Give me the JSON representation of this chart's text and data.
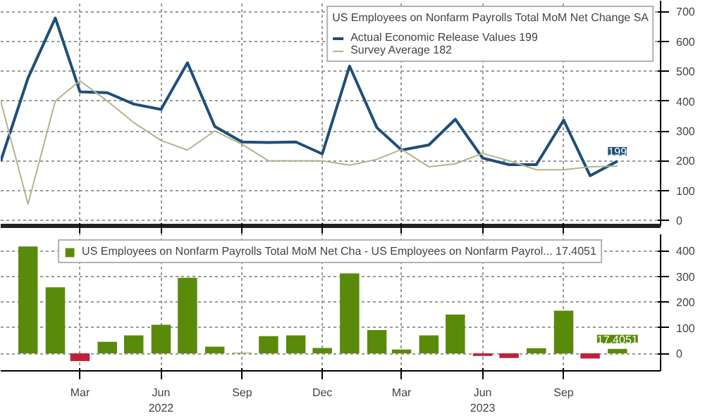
{
  "chart_data": [
    {
      "type": "line",
      "legend_title": "US Employees on Nonfarm Payrolls Total MoM Net Change SA",
      "x": [
        "2021-12",
        "2022-01",
        "2022-02",
        "2022-03",
        "2022-04",
        "2022-05",
        "2022-06",
        "2022-07",
        "2022-08",
        "2022-09",
        "2022-10",
        "2022-11",
        "2022-12",
        "2023-01",
        "2023-02",
        "2023-03",
        "2023-04",
        "2023-05",
        "2023-06",
        "2023-07",
        "2023-08",
        "2023-09",
        "2023-10",
        "2023-11"
      ],
      "series": [
        {
          "name": "Actual Economic Release Values 199",
          "color": "#1f4e79",
          "values": [
            199,
            477,
            678,
            431,
            428,
            390,
            372,
            528,
            315,
            263,
            261,
            263,
            223,
            517,
            311,
            236,
            253,
            339,
            209,
            187,
            187,
            336,
            150,
            199
          ],
          "value_labels": [
            null,
            null,
            null,
            null,
            null,
            null,
            null,
            null,
            null,
            null,
            null,
            null,
            null,
            null,
            null,
            null,
            null,
            null,
            null,
            null,
            null,
            null,
            null,
            "199"
          ]
        },
        {
          "name": "Survey Average 182",
          "color": "#b3b48a",
          "values": [
            400,
            55,
            400,
            468,
            400,
            328,
            268,
            236,
            300,
            255,
            200,
            200,
            200,
            185,
            205,
            238,
            180,
            190,
            225,
            200,
            170,
            170,
            180,
            182
          ]
        }
      ],
      "xlim": [
        "2021-12-01",
        "2023-12-20"
      ],
      "ylim": [
        -18,
        736
      ],
      "yticks": [
        0,
        100,
        200,
        300,
        400,
        500,
        600,
        700
      ],
      "xticks": [
        {
          "value": "2022-03",
          "label": null
        },
        {
          "value": "2022-06",
          "label": null
        },
        {
          "value": "2022-09",
          "label": null
        },
        {
          "value": "2022-12",
          "label": null
        },
        {
          "value": "2023-03",
          "label": null
        },
        {
          "value": "2023-06",
          "label": null
        },
        {
          "value": "2023-09",
          "label": null
        }
      ],
      "tick_labels": "y",
      "grid": true,
      "legend": "top right"
    },
    {
      "type": "bar",
      "x": [
        "2022-01",
        "2022-02",
        "2022-03",
        "2022-04",
        "2022-05",
        "2022-06",
        "2022-07",
        "2022-08",
        "2022-09",
        "2022-10",
        "2022-11",
        "2022-12",
        "2023-01",
        "2023-02",
        "2023-03",
        "2023-04",
        "2023-05",
        "2023-06",
        "2023-07",
        "2023-08",
        "2023-09",
        "2023-10",
        "2023-11"
      ],
      "series": [
        {
          "name": "US Employees on Nonfarm Payrolls Total MoM Net Cha - US Employees on Nonfarm Payrol... 17.4051",
          "colors": [
            "#5a8a0a",
            "#5a8a0a",
            "#c0203a",
            "#5a8a0a",
            "#5a8a0a",
            "#5a8a0a",
            "#5a8a0a",
            "#5a8a0a",
            "#5a8a0a",
            "#5a8a0a",
            "#5a8a0a",
            "#5a8a0a",
            "#5a8a0a",
            "#5a8a0a",
            "#5a8a0a",
            "#5a8a0a",
            "#5a8a0a",
            "#c0203a",
            "#c0203a",
            "#5a8a0a",
            "#5a8a0a",
            "#c0203a",
            "#5a8a0a"
          ],
          "values": [
            416,
            257,
            -30,
            45,
            70,
            111,
            294,
            26,
            2,
            67,
            70,
            21,
            311,
            91,
            15,
            70,
            151,
            -10,
            -18,
            20,
            166,
            -20,
            17.4051
          ],
          "value_labels": [
            null,
            null,
            null,
            null,
            null,
            null,
            null,
            null,
            null,
            null,
            null,
            null,
            null,
            null,
            null,
            null,
            null,
            null,
            null,
            null,
            null,
            null,
            "17.4051"
          ]
        }
      ],
      "xlim": [
        "2021-12-01",
        "2023-12-20"
      ],
      "ylim": [
        -68,
        463
      ],
      "yticks": [
        0,
        100,
        200,
        300,
        400
      ],
      "xticks": [
        {
          "value": "2022-03",
          "label": "Mar"
        },
        {
          "value": "2022-06",
          "label": "Jun\n2022"
        },
        {
          "value": "2022-09",
          "label": "Sep"
        },
        {
          "value": "2022-12",
          "label": "Dec"
        },
        {
          "value": "2023-03",
          "label": "Mar"
        },
        {
          "value": "2023-06",
          "label": "Jun\n2023"
        },
        {
          "value": "2023-09",
          "label": "Sep"
        }
      ],
      "grid": true,
      "legend": "top"
    }
  ]
}
